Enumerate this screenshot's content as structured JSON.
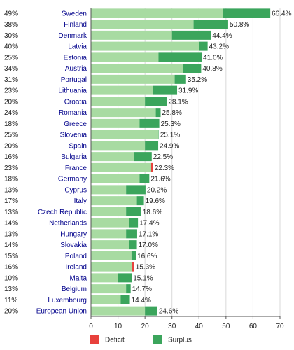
{
  "chart_data": {
    "type": "bar",
    "orientation": "horizontal",
    "stacked": true,
    "xlim": [
      0,
      70
    ],
    "xticks": [
      0,
      10,
      20,
      30,
      40,
      50,
      60,
      70
    ],
    "grid": true,
    "legend": {
      "placement": "bottom",
      "entries": [
        {
          "name": "Deficit",
          "color": "#e8413c"
        },
        {
          "name": "Surplus",
          "color": "#3ba55c"
        }
      ]
    },
    "colors": {
      "base": "#a8dba2",
      "surplus": "#3ba55c",
      "deficit": "#e8413c"
    },
    "rows": [
      {
        "country": "Sweden",
        "pct": "49%",
        "base": 49.0,
        "total": 66.4,
        "label": "66.4%"
      },
      {
        "country": "Finland",
        "pct": "38%",
        "base": 38.0,
        "total": 50.8,
        "label": "50.8%"
      },
      {
        "country": "Denmark",
        "pct": "30%",
        "base": 30.0,
        "total": 44.4,
        "label": "44.4%"
      },
      {
        "country": "Latvia",
        "pct": "40%",
        "base": 40.0,
        "total": 43.2,
        "label": "43.2%"
      },
      {
        "country": "Estonia",
        "pct": "25%",
        "base": 25.0,
        "total": 41.0,
        "label": "41.0%"
      },
      {
        "country": "Austria",
        "pct": "34%",
        "base": 34.0,
        "total": 40.8,
        "label": "40.8%"
      },
      {
        "country": "Portugal",
        "pct": "31%",
        "base": 31.0,
        "total": 35.2,
        "label": "35.2%"
      },
      {
        "country": "Lithuania",
        "pct": "23%",
        "base": 23.0,
        "total": 31.9,
        "label": "31.9%"
      },
      {
        "country": "Croatia",
        "pct": "20%",
        "base": 20.0,
        "total": 28.1,
        "label": "28.1%"
      },
      {
        "country": "Romania",
        "pct": "24%",
        "base": 24.0,
        "total": 25.8,
        "label": "25.8%"
      },
      {
        "country": "Greece",
        "pct": "18%",
        "base": 18.0,
        "total": 25.3,
        "label": "25.3%"
      },
      {
        "country": "Slovenia",
        "pct": "25%",
        "base": 25.0,
        "total": 25.1,
        "label": "25.1%"
      },
      {
        "country": "Spain",
        "pct": "20%",
        "base": 20.0,
        "total": 24.9,
        "label": "24.9%"
      },
      {
        "country": "Bulgaria",
        "pct": "16%",
        "base": 16.0,
        "total": 22.5,
        "label": "22.5%"
      },
      {
        "country": "France",
        "pct": "23%",
        "base": 23.0,
        "total": 22.3,
        "label": "22.3%"
      },
      {
        "country": "Germany",
        "pct": "18%",
        "base": 18.0,
        "total": 21.6,
        "label": "21.6%"
      },
      {
        "country": "Cyprus",
        "pct": "13%",
        "base": 13.0,
        "total": 20.2,
        "label": "20.2%"
      },
      {
        "country": "Italy",
        "pct": "17%",
        "base": 17.0,
        "total": 19.6,
        "label": "19.6%"
      },
      {
        "country": "Czech Republic",
        "pct": "13%",
        "base": 13.0,
        "total": 18.6,
        "label": "18.6%"
      },
      {
        "country": "Netherlands",
        "pct": "14%",
        "base": 14.0,
        "total": 17.4,
        "label": "17.4%"
      },
      {
        "country": "Hungary",
        "pct": "13%",
        "base": 13.0,
        "total": 17.1,
        "label": "17.1%"
      },
      {
        "country": "Slovakia",
        "pct": "14%",
        "base": 14.0,
        "total": 17.0,
        "label": "17.0%"
      },
      {
        "country": "Poland",
        "pct": "15%",
        "base": 15.0,
        "total": 16.6,
        "label": "16.6%"
      },
      {
        "country": "Ireland",
        "pct": "16%",
        "base": 16.0,
        "total": 15.3,
        "label": "15.3%"
      },
      {
        "country": "Malta",
        "pct": "10%",
        "base": 10.0,
        "total": 15.1,
        "label": "15.1%"
      },
      {
        "country": "Belgium",
        "pct": "13%",
        "base": 13.0,
        "total": 14.7,
        "label": "14.7%"
      },
      {
        "country": "Luxembourg",
        "pct": "11%",
        "base": 11.0,
        "total": 14.4,
        "label": "14.4%"
      },
      {
        "country": "European Union",
        "pct": "20%",
        "base": 20.0,
        "total": 24.6,
        "label": "24.6%"
      }
    ]
  }
}
